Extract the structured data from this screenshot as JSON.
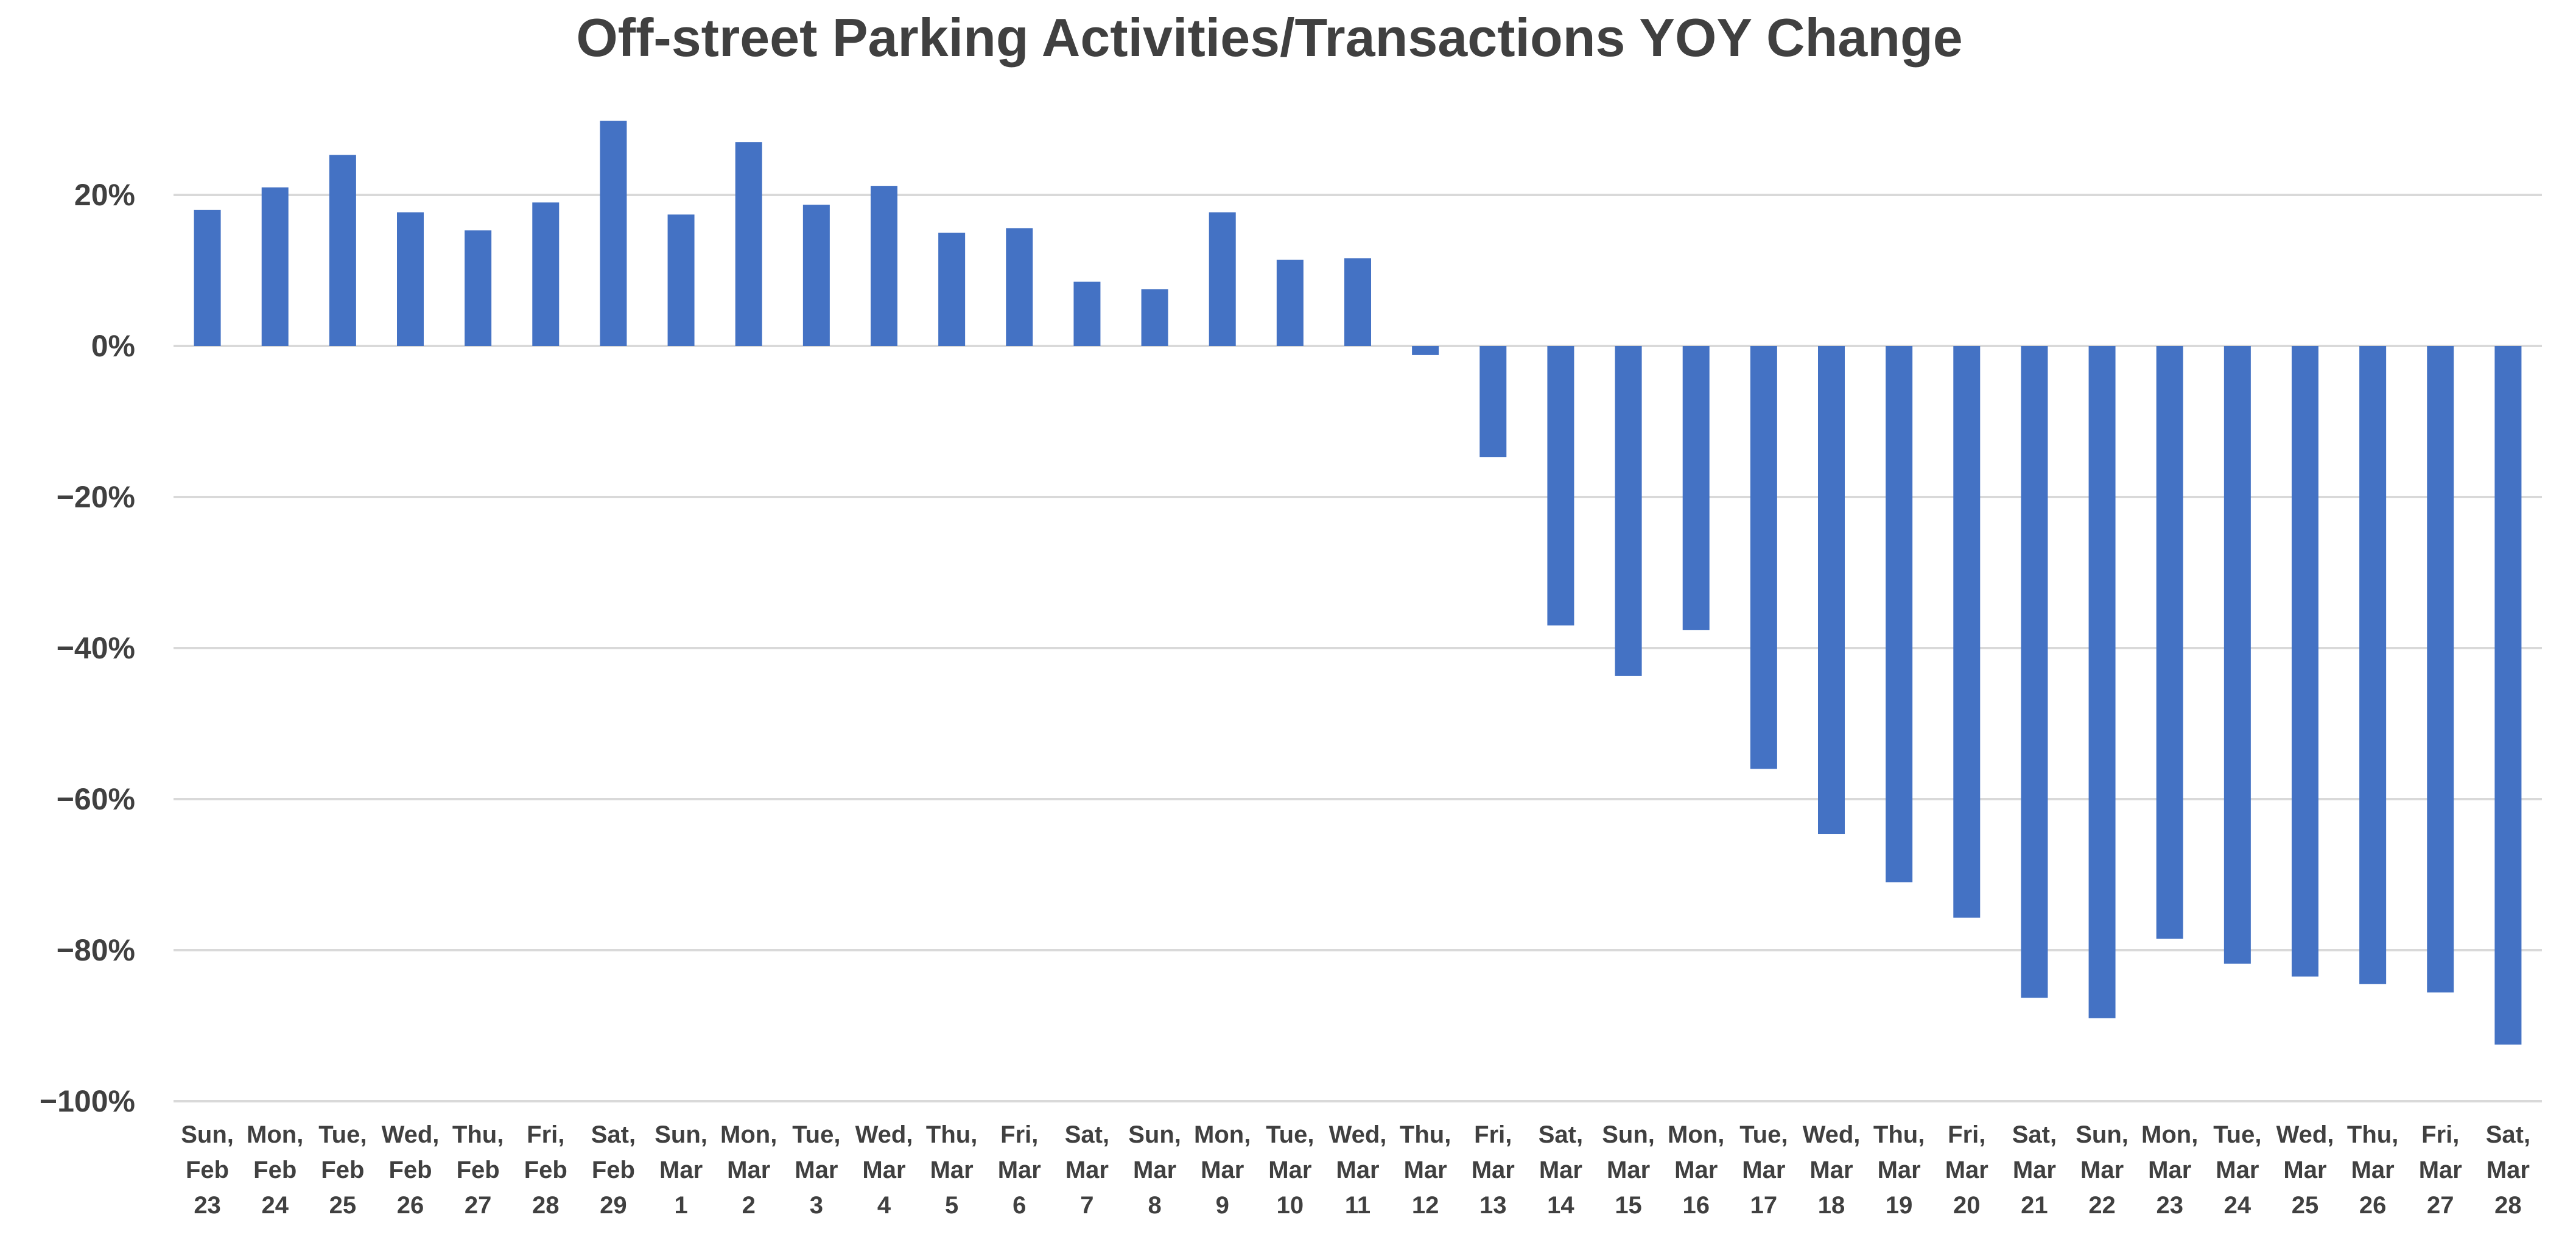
{
  "chart_data": {
    "type": "bar",
    "title": "Off-street Parking Activities/Transactions YOY Change",
    "xlabel": "",
    "ylabel": "",
    "ylim": [
      -100,
      30
    ],
    "y_ticks": [
      20,
      0,
      -20,
      -40,
      -60,
      -80,
      -100
    ],
    "y_tick_labels": [
      "20%",
      "0%",
      "−20%",
      "−40%",
      "−60%",
      "−80%",
      "−100%"
    ],
    "grid": true,
    "bar_color": "#4472C4",
    "categories": [
      [
        "Sun,",
        "Feb",
        "23"
      ],
      [
        "Mon,",
        "Feb",
        "24"
      ],
      [
        "Tue,",
        "Feb",
        "25"
      ],
      [
        "Wed,",
        "Feb",
        "26"
      ],
      [
        "Thu,",
        "Feb",
        "27"
      ],
      [
        "Fri,",
        "Feb",
        "28"
      ],
      [
        "Sat,",
        "Feb",
        "29"
      ],
      [
        "Sun,",
        "Mar",
        "1"
      ],
      [
        "Mon,",
        "Mar",
        "2"
      ],
      [
        "Tue,",
        "Mar",
        "3"
      ],
      [
        "Wed,",
        "Mar",
        "4"
      ],
      [
        "Thu,",
        "Mar",
        "5"
      ],
      [
        "Fri,",
        "Mar",
        "6"
      ],
      [
        "Sat,",
        "Mar",
        "7"
      ],
      [
        "Sun,",
        "Mar",
        "8"
      ],
      [
        "Mon,",
        "Mar",
        "9"
      ],
      [
        "Tue,",
        "Mar",
        "10"
      ],
      [
        "Wed,",
        "Mar",
        "11"
      ],
      [
        "Thu,",
        "Mar",
        "12"
      ],
      [
        "Fri,",
        "Mar",
        "13"
      ],
      [
        "Sat,",
        "Mar",
        "14"
      ],
      [
        "Sun,",
        "Mar",
        "15"
      ],
      [
        "Mon,",
        "Mar",
        "16"
      ],
      [
        "Tue,",
        "Mar",
        "17"
      ],
      [
        "Wed,",
        "Mar",
        "18"
      ],
      [
        "Thu,",
        "Mar",
        "19"
      ],
      [
        "Fri,",
        "Mar",
        "20"
      ],
      [
        "Sat,",
        "Mar",
        "21"
      ],
      [
        "Sun,",
        "Mar",
        "22"
      ],
      [
        "Mon,",
        "Mar",
        "23"
      ],
      [
        "Tue,",
        "Mar",
        "24"
      ],
      [
        "Wed,",
        "Mar",
        "25"
      ],
      [
        "Thu,",
        "Mar",
        "26"
      ],
      [
        "Fri,",
        "Mar",
        "27"
      ],
      [
        "Sat,",
        "Mar",
        "28"
      ]
    ],
    "values": [
      18,
      21,
      25.3,
      17.7,
      15.3,
      19,
      29.8,
      17.4,
      27,
      18.7,
      21.2,
      15,
      15.6,
      8.5,
      7.5,
      17.7,
      11.4,
      11.6,
      -1.2,
      -14.7,
      -37,
      -43.7,
      -37.6,
      -56,
      -64.6,
      -71,
      -75.7,
      -86.3,
      -89,
      -78.5,
      -81.8,
      -83.5,
      -84.5,
      -85.6,
      -92.5
    ]
  }
}
